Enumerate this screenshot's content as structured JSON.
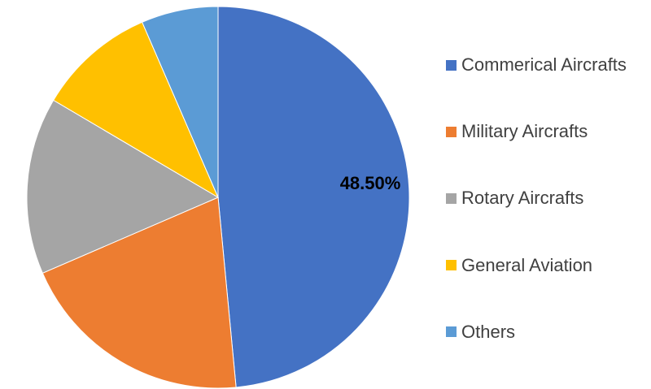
{
  "chart_data": {
    "type": "pie",
    "title": "",
    "unit": "%",
    "start_angle_deg": 0,
    "direction": "clockwise",
    "legend_position": "right",
    "background_color": "#FFFFFF",
    "data_label_color": "#000000",
    "legend_text_color": "#404040",
    "slices": [
      {
        "name": "Commerical Aircrafts",
        "value": 48.5,
        "label": "48.50%",
        "color": "#4472C4"
      },
      {
        "name": "Military Aircrafts",
        "value": 20.0,
        "label": "",
        "color": "#ED7D31"
      },
      {
        "name": "Rotary Aircrafts",
        "value": 15.0,
        "label": "",
        "color": "#A5A5A5"
      },
      {
        "name": "General Aviation",
        "value": 10.0,
        "label": "",
        "color": "#FFC000"
      },
      {
        "name": "Others",
        "value": 6.5,
        "label": "",
        "color": "#5B9BD5"
      }
    ]
  }
}
